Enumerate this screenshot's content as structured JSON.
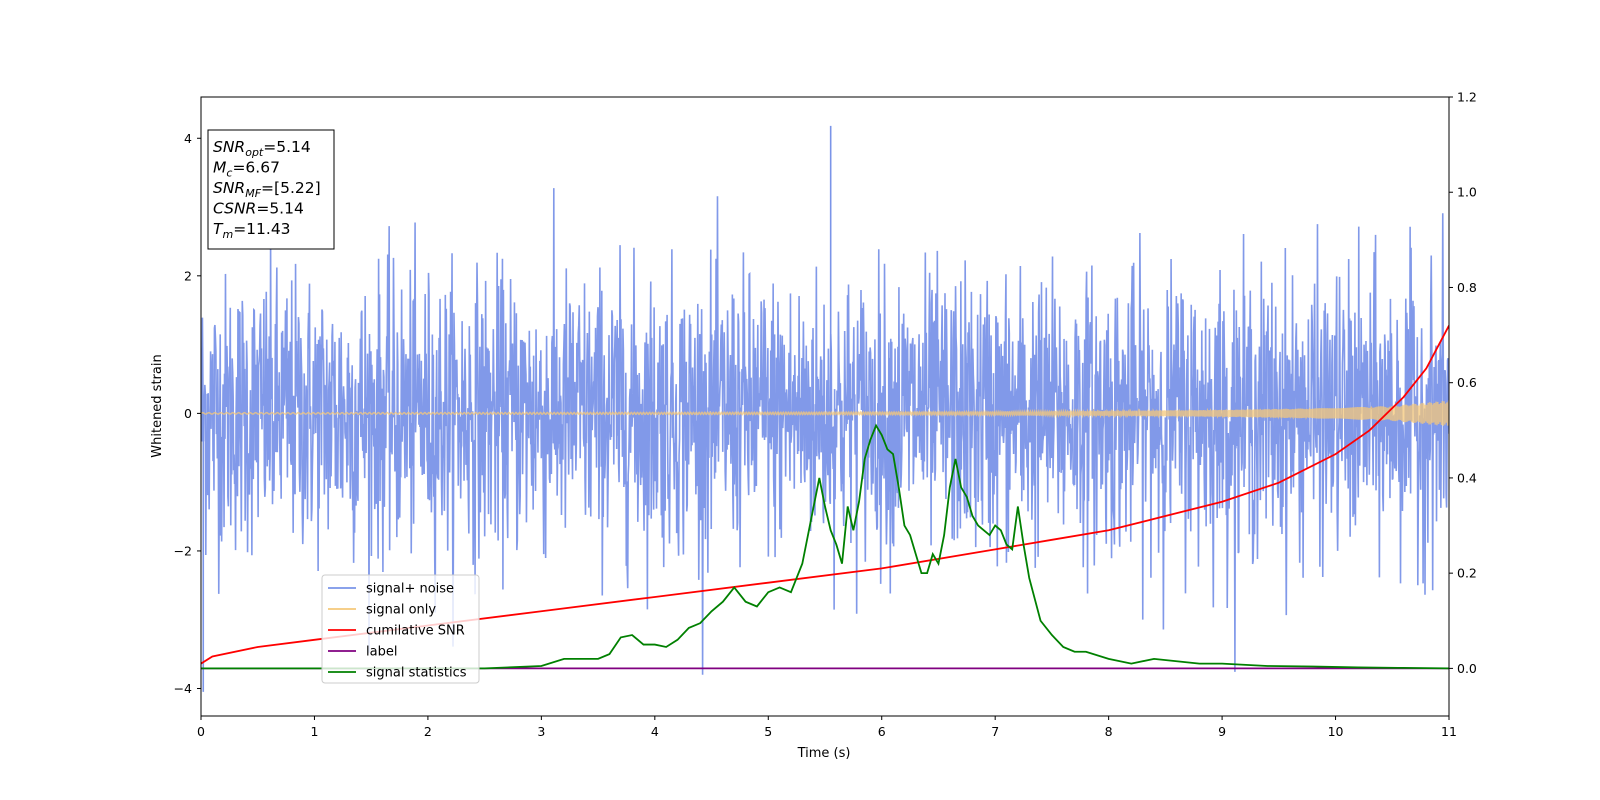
{
  "chart_data": {
    "type": "line",
    "xlabel": "Time (s)",
    "ylabel": "Whitened strain",
    "xlim": [
      0,
      11
    ],
    "ylim": [
      -4.4,
      4.6
    ],
    "y2lim": [
      -0.1,
      1.2
    ],
    "x_ticks": [
      "0",
      "1",
      "2",
      "3",
      "4",
      "5",
      "6",
      "7",
      "8",
      "9",
      "10",
      "11"
    ],
    "y_ticks": [
      "−4",
      "−2",
      "0",
      "2",
      "4"
    ],
    "y2_ticks": [
      "0.0",
      "0.2",
      "0.4",
      "0.6",
      "0.8",
      "1.0",
      "1.2"
    ],
    "info_box": [
      {
        "main": "SNR",
        "sub": "opt",
        "value": "=5.14"
      },
      {
        "main": "M",
        "sub": "c",
        "value": "=6.67"
      },
      {
        "main": "SNR",
        "sub": "MF",
        "value": "=[5.22]"
      },
      {
        "main": "CSNR",
        "sub": "",
        "value": "=5.14"
      },
      {
        "main": "T",
        "sub": "m",
        "value": "=11.43"
      }
    ],
    "legend": {
      "position": "lower-left",
      "entries": [
        {
          "label": "signal+ noise",
          "color": "#7a94e8"
        },
        {
          "label": "signal only",
          "color": "#f5c87a"
        },
        {
          "label": "cumilative SNR",
          "color": "#ff0000"
        },
        {
          "label": "label",
          "color": "#800080"
        },
        {
          "label": "signal statistics",
          "color": "#008000"
        }
      ]
    },
    "series": [
      {
        "name": "signal+ noise",
        "axis": "left",
        "color": "#7a94e8",
        "description_values": {
          "mean": 0.0,
          "std": 1.0,
          "max_peak": {
            "x": 5.55,
            "y": 4.18
          },
          "min_peak": {
            "x": 0.02,
            "y": -4.05
          }
        }
      },
      {
        "name": "signal only",
        "axis": "left",
        "color": "#f5c87a",
        "envelope": {
          "x": [
            0,
            2,
            4,
            6,
            7,
            8,
            9,
            10,
            10.5,
            11
          ],
          "amp": [
            0.01,
            0.012,
            0.015,
            0.02,
            0.025,
            0.035,
            0.05,
            0.08,
            0.11,
            0.19
          ]
        }
      },
      {
        "name": "cumilative SNR",
        "axis": "right",
        "color": "#ff0000",
        "x": [
          0,
          0.1,
          0.5,
          1,
          2,
          3,
          4,
          5,
          6,
          7,
          7.5,
          8,
          8.5,
          9,
          9.5,
          10,
          10.3,
          10.6,
          10.8,
          11
        ],
        "values": [
          0.01,
          0.025,
          0.045,
          0.06,
          0.09,
          0.12,
          0.15,
          0.18,
          0.21,
          0.25,
          0.27,
          0.29,
          0.32,
          0.35,
          0.39,
          0.45,
          0.5,
          0.57,
          0.63,
          0.72
        ]
      },
      {
        "name": "label",
        "axis": "right",
        "color": "#800080",
        "x": [
          0,
          11
        ],
        "values": [
          0.0,
          0.0
        ]
      },
      {
        "name": "signal statistics",
        "axis": "right",
        "color": "#008000",
        "x": [
          0,
          2.5,
          3.0,
          3.2,
          3.5,
          3.6,
          3.7,
          3.8,
          3.9,
          4.0,
          4.1,
          4.2,
          4.3,
          4.4,
          4.5,
          4.6,
          4.7,
          4.8,
          4.9,
          5.0,
          5.1,
          5.2,
          5.3,
          5.4,
          5.45,
          5.5,
          5.55,
          5.6,
          5.65,
          5.7,
          5.75,
          5.8,
          5.85,
          5.9,
          5.95,
          6.0,
          6.05,
          6.1,
          6.15,
          6.2,
          6.25,
          6.3,
          6.35,
          6.4,
          6.45,
          6.5,
          6.55,
          6.6,
          6.65,
          6.7,
          6.75,
          6.8,
          6.85,
          6.9,
          6.95,
          7.0,
          7.05,
          7.1,
          7.15,
          7.2,
          7.25,
          7.3,
          7.4,
          7.5,
          7.6,
          7.7,
          7.8,
          8.0,
          8.2,
          8.4,
          8.6,
          8.8,
          9.0,
          9.4,
          9.8,
          10.2,
          10.6,
          11
        ],
        "values": [
          0.0,
          0.0,
          0.005,
          0.02,
          0.02,
          0.03,
          0.065,
          0.07,
          0.05,
          0.05,
          0.045,
          0.06,
          0.085,
          0.095,
          0.12,
          0.14,
          0.17,
          0.14,
          0.13,
          0.16,
          0.17,
          0.16,
          0.22,
          0.34,
          0.4,
          0.34,
          0.29,
          0.26,
          0.22,
          0.34,
          0.29,
          0.35,
          0.44,
          0.48,
          0.51,
          0.49,
          0.46,
          0.45,
          0.38,
          0.3,
          0.28,
          0.24,
          0.2,
          0.2,
          0.24,
          0.22,
          0.28,
          0.38,
          0.44,
          0.38,
          0.36,
          0.32,
          0.3,
          0.29,
          0.28,
          0.3,
          0.29,
          0.26,
          0.25,
          0.34,
          0.26,
          0.19,
          0.1,
          0.07,
          0.045,
          0.035,
          0.035,
          0.02,
          0.01,
          0.02,
          0.015,
          0.01,
          0.01,
          0.005,
          0.004,
          0.002,
          0.001,
          0.0
        ]
      }
    ]
  }
}
